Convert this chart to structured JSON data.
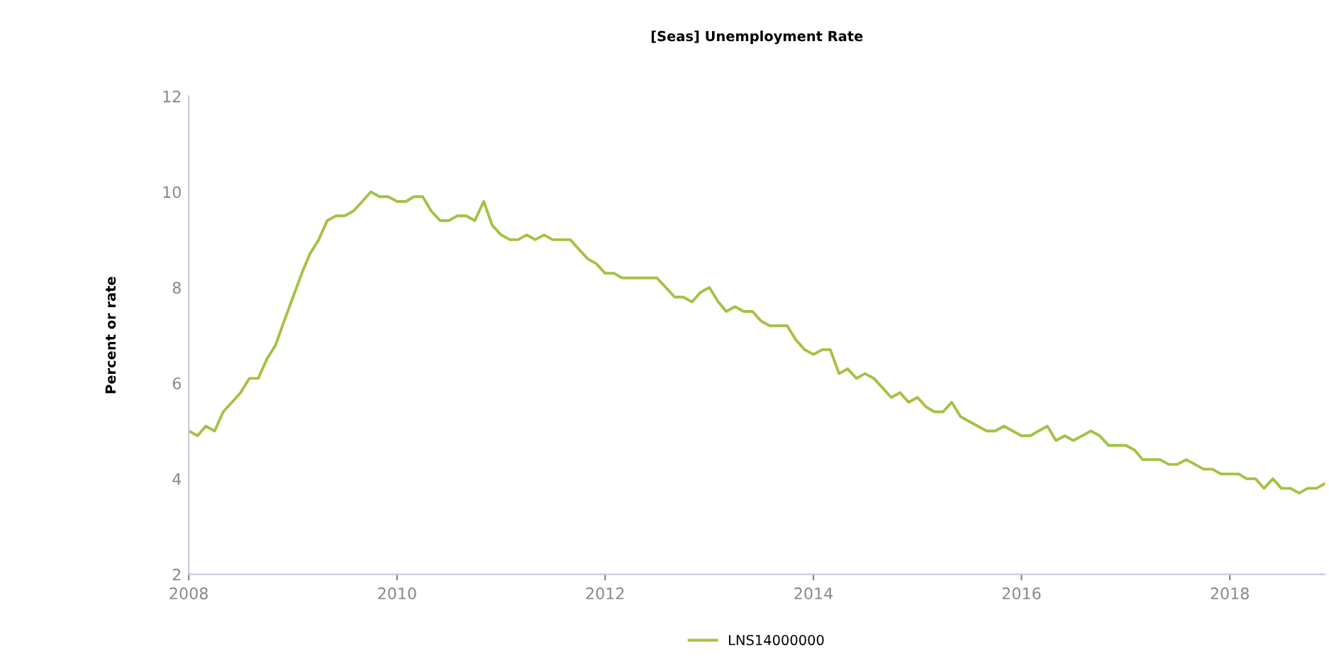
{
  "chart_data": {
    "type": "line",
    "title": "[Seas] Unemployment Rate",
    "ylabel": "Percent or rate",
    "x": [
      "2008-01",
      "2008-02",
      "2008-03",
      "2008-04",
      "2008-05",
      "2008-06",
      "2008-07",
      "2008-08",
      "2008-09",
      "2008-10",
      "2008-11",
      "2008-12",
      "2009-01",
      "2009-02",
      "2009-03",
      "2009-04",
      "2009-05",
      "2009-06",
      "2009-07",
      "2009-08",
      "2009-09",
      "2009-10",
      "2009-11",
      "2009-12",
      "2010-01",
      "2010-02",
      "2010-03",
      "2010-04",
      "2010-05",
      "2010-06",
      "2010-07",
      "2010-08",
      "2010-09",
      "2010-10",
      "2010-11",
      "2010-12",
      "2011-01",
      "2011-02",
      "2011-03",
      "2011-04",
      "2011-05",
      "2011-06",
      "2011-07",
      "2011-08",
      "2011-09",
      "2011-10",
      "2011-11",
      "2011-12",
      "2012-01",
      "2012-02",
      "2012-03",
      "2012-04",
      "2012-05",
      "2012-06",
      "2012-07",
      "2012-08",
      "2012-09",
      "2012-10",
      "2012-11",
      "2012-12",
      "2013-01",
      "2013-02",
      "2013-03",
      "2013-04",
      "2013-05",
      "2013-06",
      "2013-07",
      "2013-08",
      "2013-09",
      "2013-10",
      "2013-11",
      "2013-12",
      "2014-01",
      "2014-02",
      "2014-03",
      "2014-04",
      "2014-05",
      "2014-06",
      "2014-07",
      "2014-08",
      "2014-09",
      "2014-10",
      "2014-11",
      "2014-12",
      "2015-01",
      "2015-02",
      "2015-03",
      "2015-04",
      "2015-05",
      "2015-06",
      "2015-07",
      "2015-08",
      "2015-09",
      "2015-10",
      "2015-11",
      "2015-12",
      "2016-01",
      "2016-02",
      "2016-03",
      "2016-04",
      "2016-05",
      "2016-06",
      "2016-07",
      "2016-08",
      "2016-09",
      "2016-10",
      "2016-11",
      "2016-12",
      "2017-01",
      "2017-02",
      "2017-03",
      "2017-04",
      "2017-05",
      "2017-06",
      "2017-07",
      "2017-08",
      "2017-09",
      "2017-10",
      "2017-11",
      "2017-12",
      "2018-01",
      "2018-02",
      "2018-03",
      "2018-04",
      "2018-05",
      "2018-06",
      "2018-07",
      "2018-08",
      "2018-09",
      "2018-10",
      "2018-11",
      "2018-12"
    ],
    "series": [
      {
        "name": "LNS14000000",
        "color": "#a3c243",
        "values": [
          5.0,
          4.9,
          5.1,
          5.0,
          5.4,
          5.6,
          5.8,
          6.1,
          6.1,
          6.5,
          6.8,
          7.3,
          7.8,
          8.3,
          8.7,
          9.0,
          9.4,
          9.5,
          9.5,
          9.6,
          9.8,
          10.0,
          9.9,
          9.9,
          9.8,
          9.8,
          9.9,
          9.9,
          9.6,
          9.4,
          9.4,
          9.5,
          9.5,
          9.4,
          9.8,
          9.3,
          9.1,
          9.0,
          9.0,
          9.1,
          9.0,
          9.1,
          9.0,
          9.0,
          9.0,
          8.8,
          8.6,
          8.5,
          8.3,
          8.3,
          8.2,
          8.2,
          8.2,
          8.2,
          8.2,
          8.0,
          7.8,
          7.8,
          7.7,
          7.9,
          8.0,
          7.7,
          7.5,
          7.6,
          7.5,
          7.5,
          7.3,
          7.2,
          7.2,
          7.2,
          6.9,
          6.7,
          6.6,
          6.7,
          6.7,
          6.2,
          6.3,
          6.1,
          6.2,
          6.1,
          5.9,
          5.7,
          5.8,
          5.6,
          5.7,
          5.5,
          5.4,
          5.4,
          5.6,
          5.3,
          5.2,
          5.1,
          5.0,
          5.0,
          5.1,
          5.0,
          4.9,
          4.9,
          5.0,
          5.1,
          4.8,
          4.9,
          4.8,
          4.9,
          5.0,
          4.9,
          4.7,
          4.7,
          4.7,
          4.6,
          4.4,
          4.4,
          4.4,
          4.3,
          4.3,
          4.4,
          4.3,
          4.2,
          4.2,
          4.1,
          4.1,
          4.1,
          4.0,
          4.0,
          3.8,
          4.0,
          3.8,
          3.8,
          3.7,
          3.8,
          3.8,
          3.9
        ]
      }
    ],
    "xlim": [
      "2008-01",
      "2018-12"
    ],
    "xticks": [
      "2008",
      "2010",
      "2012",
      "2014",
      "2016",
      "2018"
    ],
    "ylim": [
      2,
      12
    ],
    "yticks": [
      2,
      4,
      6,
      8,
      10,
      12
    ],
    "grid": false,
    "legend": "bottom",
    "marker": "none",
    "line_style": "solid"
  }
}
